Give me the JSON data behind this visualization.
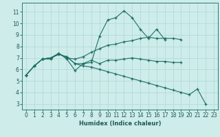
{
  "background_color": "#cdecea",
  "grid_color": "#add8d4",
  "line_color": "#1e6e64",
  "xlabel": "Humidex (Indice chaleur)",
  "xlim": [
    -0.5,
    23.5
  ],
  "ylim": [
    2.5,
    11.8
  ],
  "xticks": [
    0,
    1,
    2,
    3,
    4,
    5,
    6,
    7,
    8,
    9,
    10,
    11,
    12,
    13,
    14,
    15,
    16,
    17,
    18,
    19,
    20,
    21,
    22,
    23
  ],
  "yticks": [
    3,
    4,
    5,
    6,
    7,
    8,
    9,
    10,
    11
  ],
  "lines": [
    {
      "x": [
        0,
        1,
        2,
        3,
        4,
        5,
        6,
        7,
        8,
        9,
        10,
        11,
        12,
        13,
        14,
        15,
        16,
        17
      ],
      "y": [
        5.5,
        6.3,
        6.9,
        6.9,
        7.4,
        6.9,
        5.9,
        6.5,
        6.6,
        8.9,
        10.3,
        10.5,
        11.1,
        10.5,
        9.5,
        8.7,
        9.5,
        8.6
      ]
    },
    {
      "x": [
        0,
        1,
        2,
        3,
        4,
        5,
        6,
        7,
        8,
        9,
        10,
        11,
        12,
        13,
        14,
        15,
        16,
        17,
        18,
        19
      ],
      "y": [
        5.5,
        6.3,
        6.9,
        7.0,
        7.4,
        7.0,
        6.9,
        7.1,
        7.5,
        7.8,
        8.1,
        8.2,
        8.4,
        8.5,
        8.7,
        8.8,
        8.7,
        8.7,
        8.7,
        8.6
      ]
    },
    {
      "x": [
        0,
        1,
        2,
        3,
        4,
        5,
        6,
        7,
        8,
        9,
        10,
        11,
        12,
        13,
        14,
        15,
        16,
        17,
        18,
        19
      ],
      "y": [
        5.5,
        6.3,
        6.9,
        7.0,
        7.3,
        7.1,
        6.5,
        6.5,
        6.8,
        6.5,
        6.8,
        6.8,
        6.9,
        7.0,
        6.9,
        6.8,
        6.7,
        6.7,
        6.6,
        6.6
      ]
    },
    {
      "x": [
        0,
        1,
        2,
        3,
        4,
        5,
        6,
        7,
        8,
        9,
        10,
        11,
        12,
        13,
        14,
        15,
        16,
        17,
        18,
        19,
        20,
        21,
        22
      ],
      "y": [
        5.5,
        6.3,
        6.9,
        7.0,
        7.3,
        7.1,
        6.5,
        6.3,
        6.2,
        6.0,
        5.8,
        5.6,
        5.4,
        5.2,
        5.0,
        4.8,
        4.6,
        4.4,
        4.2,
        4.0,
        3.8,
        4.3,
        3.0
      ]
    }
  ]
}
